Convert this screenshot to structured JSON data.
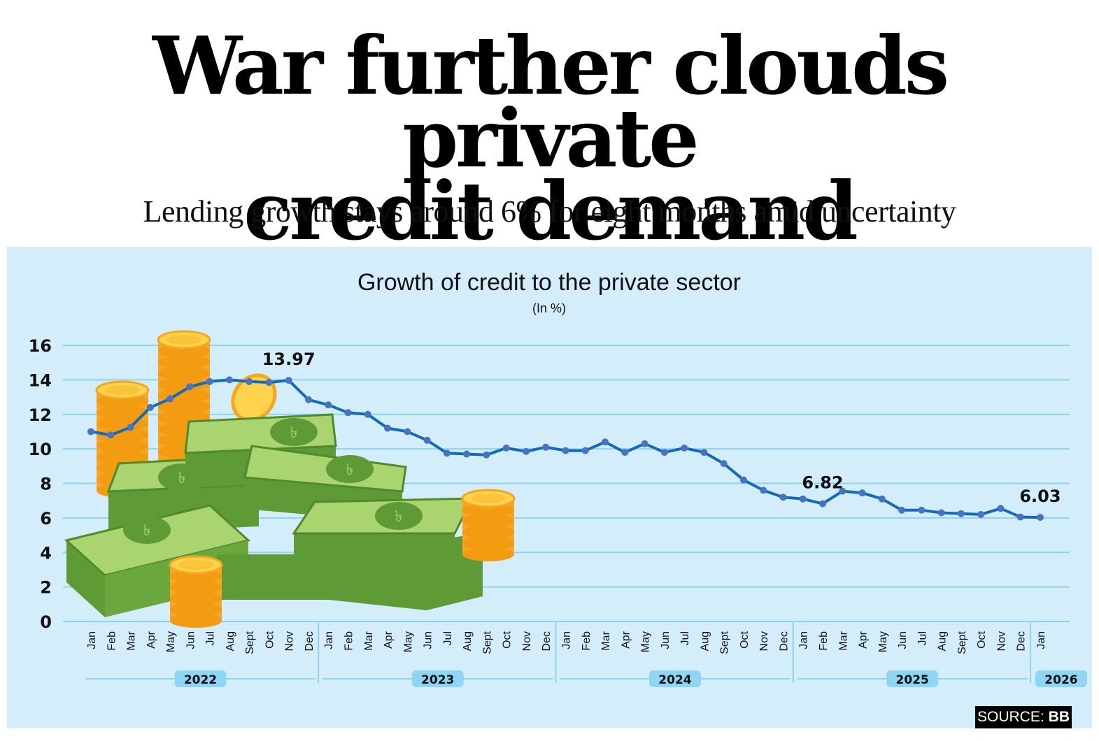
{
  "headline": {
    "line1": "War further clouds private",
    "line2": "credit demand"
  },
  "subheadline": "Lending growth stays around 6% for eight months amid uncertainty",
  "source": {
    "prefix": "SOURCE:",
    "name": "BB"
  },
  "colors": {
    "panel_bg": "#d3eefa",
    "gridline": "#8fd3f0",
    "line": "#0f6db8",
    "marker": "#4a72c0",
    "year_pill": "#8fd6f4",
    "text": "#111111"
  },
  "illustration": {
    "description": "Stacks of taka banknotes and gold coins",
    "currency_symbol": "৳"
  },
  "chart_data": {
    "type": "line",
    "title": "Growth of credit to the private sector",
    "subtitle": "(In %)",
    "xlabel": "",
    "ylabel": "",
    "ylim": [
      0,
      16
    ],
    "yticks": [
      0,
      2,
      4,
      6,
      8,
      10,
      12,
      14,
      16
    ],
    "grid": true,
    "legend": "none",
    "years": [
      {
        "label": "2022",
        "months": [
          "Jan",
          "Feb",
          "Mar",
          "Apr",
          "May",
          "Jun",
          "Jul",
          "Aug",
          "Sept",
          "Oct",
          "Nov",
          "Dec"
        ]
      },
      {
        "label": "2023",
        "months": [
          "Jan",
          "Feb",
          "Mar",
          "Apr",
          "May",
          "Jun",
          "Jul",
          "Aug",
          "Sept",
          "Oct",
          "Nov",
          "Dec"
        ]
      },
      {
        "label": "2024",
        "months": [
          "Jan",
          "Feb",
          "Mar",
          "Apr",
          "May",
          "Jun",
          "Jul",
          "Aug",
          "Sept",
          "Oct",
          "Nov",
          "Dec"
        ]
      },
      {
        "label": "2025",
        "months": [
          "Jan",
          "Feb",
          "Mar",
          "Apr",
          "May",
          "Jun",
          "Jul",
          "Aug",
          "Sept",
          "Oct",
          "Nov",
          "Dec"
        ]
      },
      {
        "label": "2026",
        "months": [
          "Jan"
        ]
      }
    ],
    "series": [
      {
        "name": "Private sector credit growth",
        "values": [
          11.0,
          10.8,
          11.25,
          12.4,
          12.9,
          13.6,
          13.9,
          14.0,
          13.9,
          13.85,
          13.97,
          12.85,
          12.55,
          12.1,
          12.0,
          11.2,
          11.0,
          10.5,
          9.75,
          9.7,
          9.65,
          10.05,
          9.85,
          10.1,
          9.9,
          9.9,
          10.4,
          9.8,
          10.3,
          9.8,
          10.05,
          9.8,
          9.15,
          8.2,
          7.6,
          7.2,
          7.1,
          6.82,
          7.55,
          7.45,
          7.1,
          6.45,
          6.45,
          6.3,
          6.25,
          6.2,
          6.55,
          6.05,
          6.03
        ]
      }
    ],
    "annotations": [
      {
        "index": 10,
        "text": "13.97"
      },
      {
        "index": 37,
        "text": "6.82"
      },
      {
        "index": 48,
        "text": "6.03"
      }
    ]
  }
}
